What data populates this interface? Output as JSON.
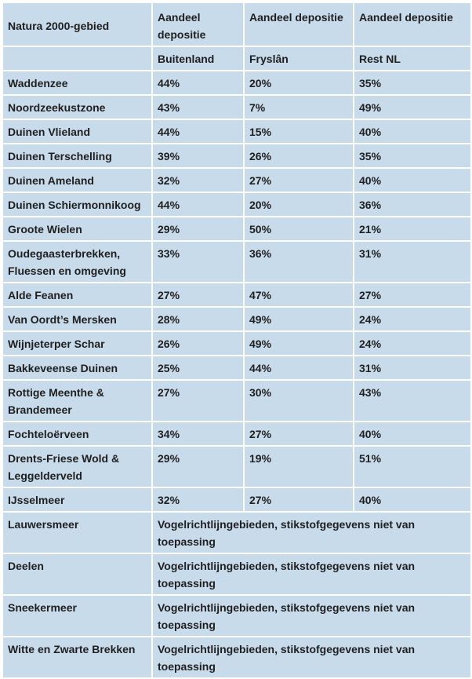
{
  "header": {
    "col1": "Natura 2000-gebied",
    "col2": "Aandeel depositie",
    "col3": "Aandeel depositie",
    "col4": "Aandeel depositie",
    "sub2": "Buitenland",
    "sub3": "Fryslân",
    "sub4": "Rest NL"
  },
  "rows": [
    {
      "name": "Waddenzee",
      "buitenland": "44%",
      "fryslan": "20%",
      "rest_nl": "35%"
    },
    {
      "name": "Noordzeekustzone",
      "buitenland": "43%",
      "fryslan": "7%",
      "rest_nl": "49%"
    },
    {
      "name": "Duinen Vlieland",
      "buitenland": "44%",
      "fryslan": "15%",
      "rest_nl": "40%"
    },
    {
      "name": "Duinen Terschelling",
      "buitenland": "39%",
      "fryslan": "26%",
      "rest_nl": "35%"
    },
    {
      "name": "Duinen Ameland",
      "buitenland": "32%",
      "fryslan": "27%",
      "rest_nl": "40%"
    },
    {
      "name": "Duinen Schiermonnikoog",
      "buitenland": "44%",
      "fryslan": "20%",
      "rest_nl": "36%"
    },
    {
      "name": "Groote Wielen",
      "buitenland": "29%",
      "fryslan": "50%",
      "rest_nl": "21%"
    },
    {
      "name": "Oudegaasterbrekken, Fluessen en omgeving",
      "buitenland": "33%",
      "fryslan": "36%",
      "rest_nl": "31%"
    },
    {
      "name": "Alde Feanen",
      "buitenland": "27%",
      "fryslan": "47%",
      "rest_nl": "27%"
    },
    {
      "name": "Van Oordt’s Mersken",
      "buitenland": "28%",
      "fryslan": "49%",
      "rest_nl": "24%"
    },
    {
      "name": "Wijnjeterper Schar",
      "buitenland": "26%",
      "fryslan": "49%",
      "rest_nl": "24%"
    },
    {
      "name": "Bakkeveense Duinen",
      "buitenland": "25%",
      "fryslan": "44%",
      "rest_nl": "31%"
    },
    {
      "name": "Rottige Meenthe & Brandemeer",
      "buitenland": "27%",
      "fryslan": "30%",
      "rest_nl": "43%"
    },
    {
      "name": "Fochteloërveen",
      "buitenland": "34%",
      "fryslan": "27%",
      "rest_nl": "40%"
    },
    {
      "name": "Drents-Friese Wold & Leggelderveld",
      "buitenland": "29%",
      "fryslan": "19%",
      "rest_nl": "51%"
    },
    {
      "name": "IJsselmeer",
      "buitenland": "32%",
      "fryslan": "27%",
      "rest_nl": "40%"
    }
  ],
  "note_rows": [
    {
      "name": "Lauwersmeer",
      "note": "Vogelrichtlijngebieden, stikstofgegevens niet van toepassing"
    },
    {
      "name": "Deelen",
      "note": "Vogelrichtlijngebieden, stikstofgegevens niet van toepassing"
    },
    {
      "name": "Sneekermeer",
      "note": "Vogelrichtlijngebieden, stikstofgegevens niet van toepassing"
    },
    {
      "name": "Witte en Zwarte Brekken",
      "note": "Vogelrichtlijngebieden, stikstofgegevens niet van toepassing"
    }
  ]
}
